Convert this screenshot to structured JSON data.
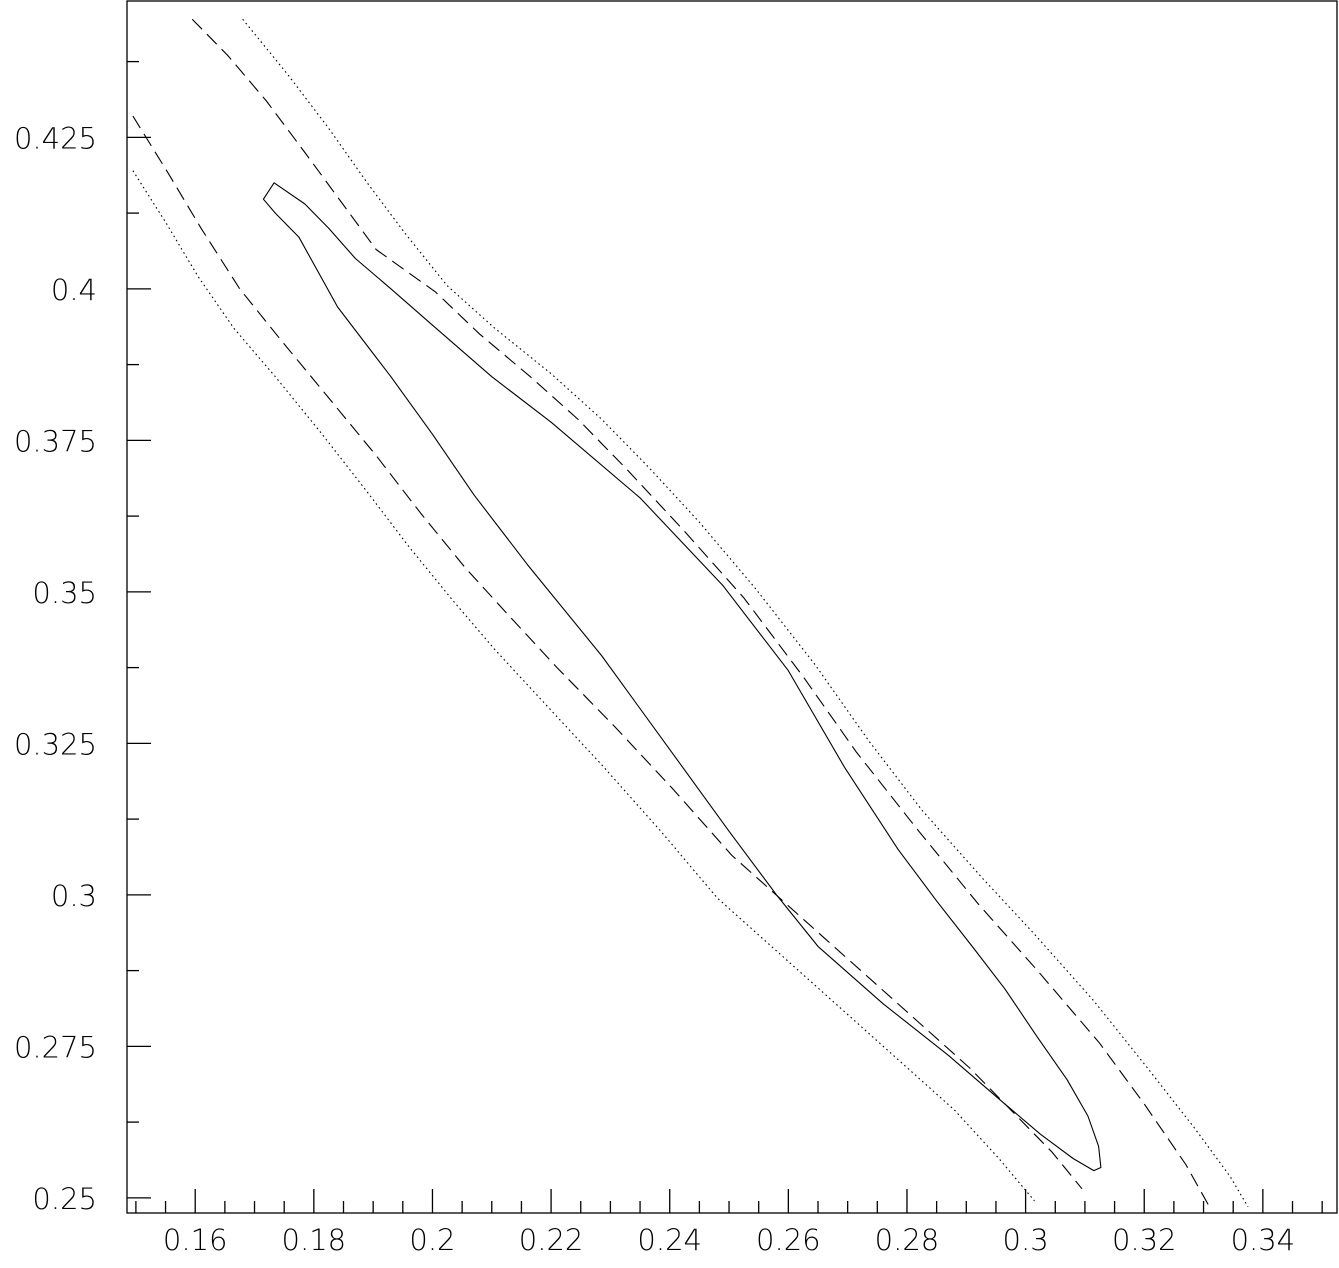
{
  "chart_data": {
    "type": "contour",
    "title": "",
    "xlabel": "",
    "ylabel": "",
    "xlim": [
      0.1485,
      0.3525
    ],
    "ylim": [
      0.2475,
      0.4475
    ],
    "grid": false,
    "x_ticks": {
      "major": [
        0.16,
        0.18,
        0.2,
        0.22,
        0.24,
        0.26,
        0.28,
        0.3,
        0.32,
        0.34
      ],
      "labels": [
        "0.16",
        "0.18",
        "0.2",
        "0.22",
        "0.24",
        "0.26",
        "0.28",
        "0.3",
        "0.32",
        "0.34"
      ],
      "minor_step": 0.005
    },
    "y_ticks": {
      "major": [
        0.25,
        0.275,
        0.3,
        0.325,
        0.35,
        0.375,
        0.4,
        0.425
      ],
      "labels": [
        "0.25",
        "0.275",
        "0.3",
        "0.325",
        "0.35",
        "0.375",
        "0.4",
        "0.425"
      ],
      "minor_step": 0.0125
    },
    "series": [
      {
        "style": "solid",
        "closed": true,
        "points": [
          [
            0.1715,
            0.4148
          ],
          [
            0.1733,
            0.4175
          ],
          [
            0.1785,
            0.414
          ],
          [
            0.1825,
            0.41
          ],
          [
            0.187,
            0.405
          ],
          [
            0.193,
            0.4
          ],
          [
            0.2,
            0.394
          ],
          [
            0.21,
            0.3855
          ],
          [
            0.22,
            0.378
          ],
          [
            0.235,
            0.3655
          ],
          [
            0.249,
            0.351
          ],
          [
            0.26,
            0.337
          ],
          [
            0.2695,
            0.321
          ],
          [
            0.2785,
            0.3075
          ],
          [
            0.285,
            0.299
          ],
          [
            0.291,
            0.2915
          ],
          [
            0.2965,
            0.2845
          ],
          [
            0.302,
            0.2765
          ],
          [
            0.307,
            0.2695
          ],
          [
            0.3105,
            0.2635
          ],
          [
            0.3123,
            0.2585
          ],
          [
            0.3127,
            0.255
          ],
          [
            0.3115,
            0.2545
          ],
          [
            0.308,
            0.2565
          ],
          [
            0.3025,
            0.2605
          ],
          [
            0.2965,
            0.2655
          ],
          [
            0.287,
            0.2735
          ],
          [
            0.276,
            0.282
          ],
          [
            0.265,
            0.2915
          ],
          [
            0.258,
            0.3
          ],
          [
            0.25,
            0.3105
          ],
          [
            0.24,
            0.324
          ],
          [
            0.2285,
            0.3395
          ],
          [
            0.216,
            0.3545
          ],
          [
            0.207,
            0.366
          ],
          [
            0.2,
            0.376
          ],
          [
            0.193,
            0.3855
          ],
          [
            0.184,
            0.397
          ],
          [
            0.1775,
            0.4085
          ],
          [
            0.1735,
            0.4125
          ]
        ]
      },
      {
        "style": "dashed",
        "closed": false,
        "points": [
          [
            0.1595,
            0.4445
          ],
          [
            0.1655,
            0.4385
          ],
          [
            0.172,
            0.431
          ],
          [
            0.1785,
            0.4225
          ],
          [
            0.1845,
            0.4145
          ],
          [
            0.1905,
            0.4065
          ],
          [
            0.2005,
            0.3995
          ],
          [
            0.208,
            0.3925
          ],
          [
            0.2165,
            0.3855
          ],
          [
            0.2245,
            0.3785
          ],
          [
            0.2325,
            0.3705
          ],
          [
            0.2425,
            0.36
          ],
          [
            0.2525,
            0.349
          ],
          [
            0.2625,
            0.336
          ],
          [
            0.2715,
            0.3235
          ],
          [
            0.282,
            0.3105
          ],
          [
            0.292,
            0.2985
          ],
          [
            0.302,
            0.2875
          ],
          [
            0.3125,
            0.2755
          ],
          [
            0.32,
            0.2655
          ],
          [
            0.327,
            0.2555
          ],
          [
            0.331,
            0.2485
          ]
        ]
      },
      {
        "style": "dashed",
        "closed": false,
        "points": [
          [
            0.1495,
            0.4285
          ],
          [
            0.1555,
            0.419
          ],
          [
            0.161,
            0.41
          ],
          [
            0.1675,
            0.4
          ],
          [
            0.1745,
            0.3915
          ],
          [
            0.1825,
            0.382
          ],
          [
            0.1905,
            0.3725
          ],
          [
            0.198,
            0.363
          ],
          [
            0.2055,
            0.354
          ],
          [
            0.2125,
            0.3465
          ],
          [
            0.221,
            0.3375
          ],
          [
            0.2305,
            0.328
          ],
          [
            0.2405,
            0.3175
          ],
          [
            0.2505,
            0.3065
          ],
          [
            0.2585,
            0.2995
          ],
          [
            0.2665,
            0.2925
          ],
          [
            0.2745,
            0.2855
          ],
          [
            0.2825,
            0.2785
          ],
          [
            0.2905,
            0.2715
          ],
          [
            0.2985,
            0.2635
          ],
          [
            0.3045,
            0.2575
          ],
          [
            0.3095,
            0.2515
          ]
        ]
      },
      {
        "style": "dotted",
        "closed": false,
        "points": [
          [
            0.168,
            0.4445
          ],
          [
            0.1755,
            0.4355
          ],
          [
            0.1825,
            0.4265
          ],
          [
            0.189,
            0.4175
          ],
          [
            0.1955,
            0.409
          ],
          [
            0.2025,
            0.4005
          ],
          [
            0.2105,
            0.3935
          ],
          [
            0.22,
            0.386
          ],
          [
            0.2285,
            0.3785
          ],
          [
            0.2365,
            0.3705
          ],
          [
            0.245,
            0.3615
          ],
          [
            0.2545,
            0.3505
          ],
          [
            0.2645,
            0.338
          ],
          [
            0.2735,
            0.3255
          ],
          [
            0.2825,
            0.314
          ],
          [
            0.2925,
            0.303
          ],
          [
            0.3015,
            0.2935
          ],
          [
            0.3115,
            0.2825
          ],
          [
            0.3205,
            0.2715
          ],
          [
            0.3285,
            0.2615
          ],
          [
            0.3345,
            0.2535
          ],
          [
            0.3375,
            0.2485
          ]
        ]
      },
      {
        "style": "dotted",
        "closed": false,
        "points": [
          [
            0.1495,
            0.4195
          ],
          [
            0.155,
            0.411
          ],
          [
            0.1605,
            0.402
          ],
          [
            0.1665,
            0.3935
          ],
          [
            0.1735,
            0.3855
          ],
          [
            0.181,
            0.3765
          ],
          [
            0.189,
            0.3665
          ],
          [
            0.196,
            0.3575
          ],
          [
            0.2035,
            0.3485
          ],
          [
            0.2105,
            0.3405
          ],
          [
            0.219,
            0.3315
          ],
          [
            0.2285,
            0.3215
          ],
          [
            0.2385,
            0.3105
          ],
          [
            0.248,
            0.2995
          ],
          [
            0.256,
            0.2925
          ],
          [
            0.264,
            0.2855
          ],
          [
            0.272,
            0.2785
          ],
          [
            0.28,
            0.2715
          ],
          [
            0.288,
            0.2645
          ],
          [
            0.2955,
            0.2565
          ],
          [
            0.3015,
            0.2495
          ]
        ]
      }
    ]
  }
}
